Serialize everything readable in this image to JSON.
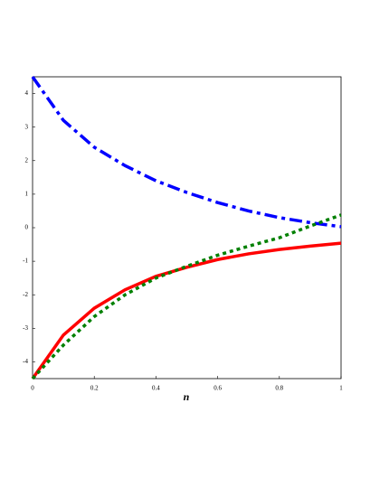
{
  "chart_data": {
    "type": "line",
    "x_label": "n",
    "x": [
      0,
      0.1,
      0.2,
      0.3,
      0.4,
      0.5,
      0.6,
      0.7,
      0.8,
      0.9,
      1
    ],
    "series": [
      {
        "color": "#0000ff",
        "dash": "dashdot",
        "values": [
          4.5,
          3.2,
          2.4,
          1.85,
          1.4,
          1.05,
          0.75,
          0.5,
          0.3,
          0.15,
          0.03
        ]
      },
      {
        "color": "#ff0000",
        "dash": "solid",
        "values": [
          -4.5,
          -3.2,
          -2.4,
          -1.85,
          -1.45,
          -1.18,
          -0.95,
          -0.78,
          -0.65,
          -0.55,
          -0.46
        ]
      },
      {
        "color": "#008000",
        "dash": "dot",
        "values": [
          -4.5,
          -3.5,
          -2.65,
          -2.0,
          -1.5,
          -1.15,
          -0.82,
          -0.55,
          -0.3,
          0.05,
          0.38
        ]
      }
    ],
    "xlim": [
      0,
      1
    ],
    "ylim": [
      -4.5,
      4.5
    ],
    "xticks": [
      0,
      0.2,
      0.4,
      0.6,
      0.8,
      1
    ],
    "yticks": [
      -4,
      -3,
      -2,
      -1,
      0,
      1,
      2,
      3,
      4
    ]
  }
}
